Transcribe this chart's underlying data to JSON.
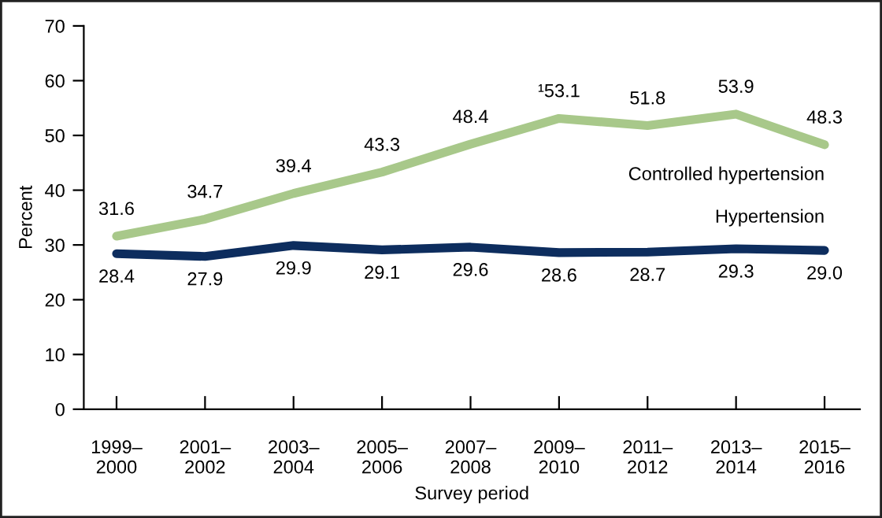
{
  "chart_data": {
    "type": "line",
    "xlabel": "Survey period",
    "ylabel": "Percent",
    "categories": [
      "1999–\n2000",
      "2001–\n2002",
      "2003–\n2004",
      "2005–\n2006",
      "2007–\n2008",
      "2009–\n2010",
      "2011–\n2012",
      "2013–\n2014",
      "2015–\n2016"
    ],
    "series": [
      {
        "name": "Controlled hypertension",
        "color": "#a8c88a",
        "values": [
          31.6,
          34.7,
          39.4,
          43.3,
          48.4,
          53.1,
          51.8,
          53.9,
          48.3
        ],
        "value_labels": [
          "31.6",
          "34.7",
          "39.4",
          "43.3",
          "48.4",
          "¹53.1",
          "51.8",
          "53.9",
          "48.3"
        ]
      },
      {
        "name": "Hypertension",
        "color": "#0d2d5e",
        "values": [
          28.4,
          27.9,
          29.9,
          29.1,
          29.6,
          28.6,
          28.7,
          29.3,
          29.0
        ],
        "value_labels": [
          "28.4",
          "27.9",
          "29.9",
          "29.1",
          "29.6",
          "28.6",
          "28.7",
          "29.3",
          "29.0"
        ]
      }
    ],
    "ylim": [
      0,
      70
    ],
    "yticks": [
      0,
      10,
      20,
      30,
      40,
      50,
      60,
      70
    ],
    "grid": false,
    "legend": false,
    "marker": "none",
    "line_style": "solid"
  }
}
